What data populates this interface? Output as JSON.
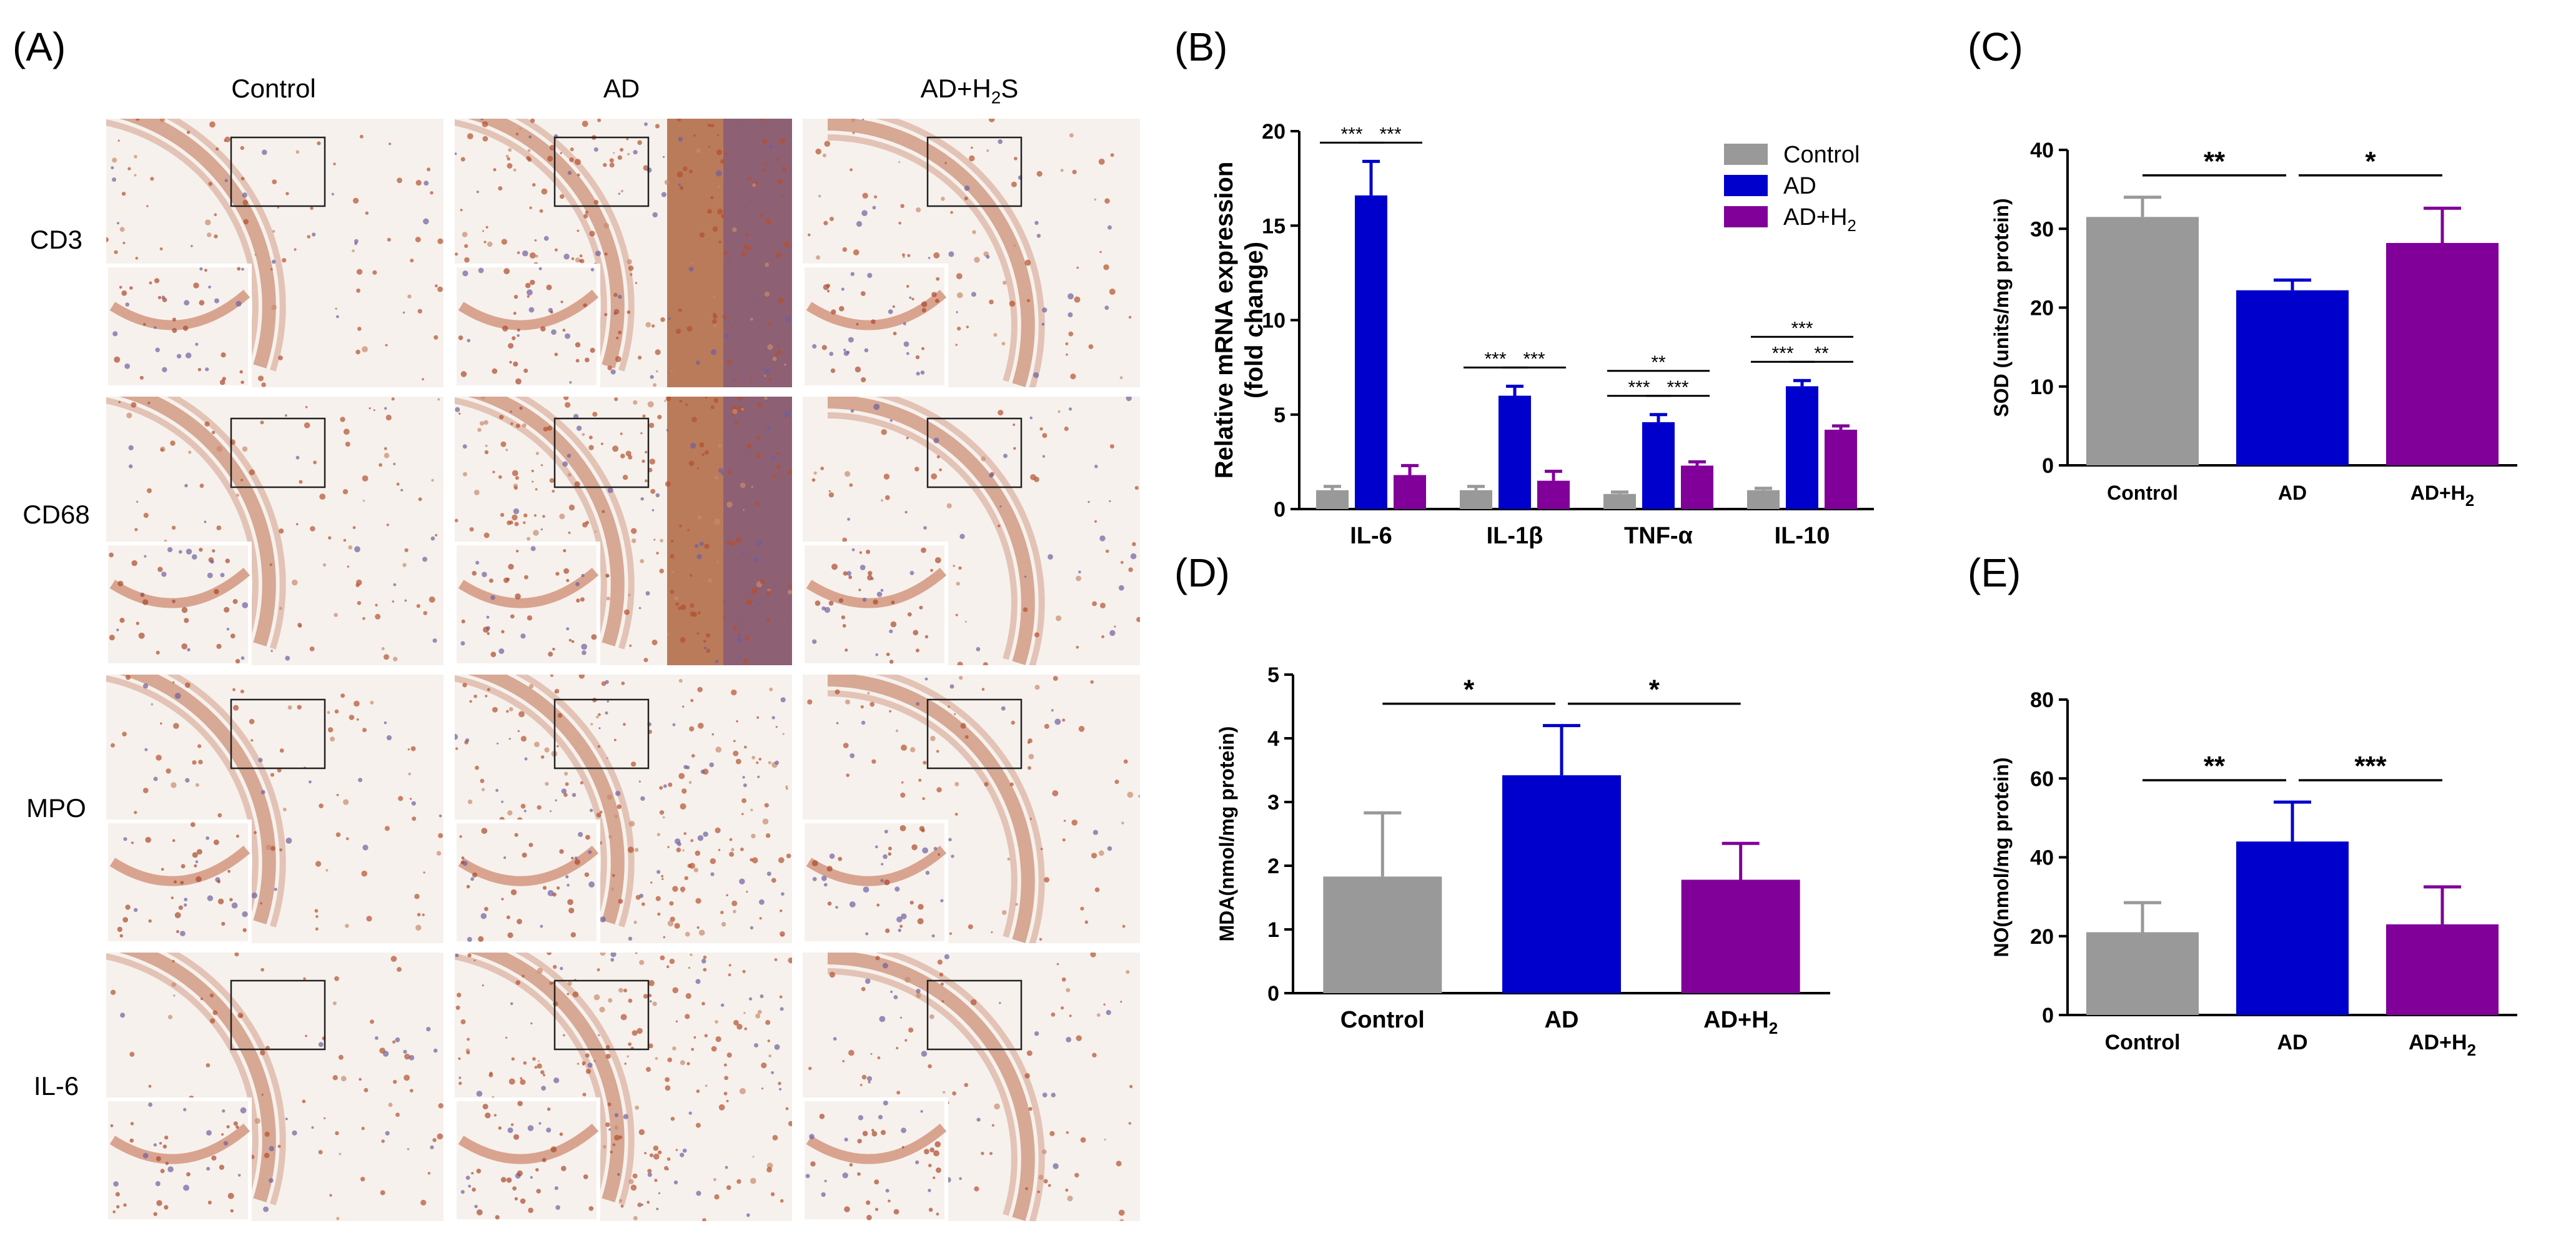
{
  "colors": {
    "control": "#999999",
    "ad": "#0000cc",
    "ad_h2s": "#800099"
  },
  "panels": {
    "a": "(A)",
    "b": "(B)",
    "c": "(C)",
    "d": "(D)",
    "e": "(E)"
  },
  "histology": {
    "columns": [
      "Control",
      "AD",
      "AD+H2S"
    ],
    "rows": [
      "CD3",
      "CD68",
      "MPO",
      "IL-6"
    ]
  },
  "chart_data": [
    {
      "id": "B",
      "type": "bar",
      "categories": [
        "IL-6",
        "IL-1β",
        "TNF-α",
        "IL-10"
      ],
      "series": [
        {
          "name": "Control",
          "values": [
            1.0,
            1.0,
            0.8,
            1.0
          ],
          "errors": [
            0.2,
            0.2,
            0.1,
            0.1
          ]
        },
        {
          "name": "AD",
          "values": [
            16.6,
            6.0,
            4.6,
            6.5
          ],
          "errors": [
            1.8,
            0.5,
            0.4,
            0.3
          ]
        },
        {
          "name": "AD+H2S",
          "values": [
            1.8,
            1.5,
            2.3,
            4.2
          ],
          "errors": [
            0.5,
            0.5,
            0.2,
            0.2
          ]
        }
      ],
      "ylabel": "Relative mRNA expression (fold change)",
      "ylim": [
        0,
        20
      ],
      "yticks": [
        0,
        5,
        10,
        15,
        20
      ],
      "legend": "top-right",
      "significance": [
        {
          "category": 0,
          "from": 0,
          "to": 1,
          "label": "***"
        },
        {
          "category": 0,
          "from": 1,
          "to": 2,
          "label": "***"
        },
        {
          "category": 1,
          "from": 0,
          "to": 1,
          "label": "***"
        },
        {
          "category": 1,
          "from": 1,
          "to": 2,
          "label": "***"
        },
        {
          "category": 2,
          "from": 0,
          "to": 2,
          "label": "**"
        },
        {
          "category": 2,
          "from": 0,
          "to": 1,
          "label": "***"
        },
        {
          "category": 2,
          "from": 1,
          "to": 2,
          "label": "***"
        },
        {
          "category": 3,
          "from": 0,
          "to": 2,
          "label": "***"
        },
        {
          "category": 3,
          "from": 0,
          "to": 1,
          "label": "***"
        },
        {
          "category": 3,
          "from": 1,
          "to": 2,
          "label": "**"
        }
      ]
    },
    {
      "id": "C",
      "type": "bar",
      "categories": [
        "Control",
        "AD",
        "AD+H2S"
      ],
      "values": [
        31.5,
        22.2,
        28.2
      ],
      "errors": [
        2.5,
        1.3,
        4.4
      ],
      "ylabel": "SOD (units/mg protein)",
      "ylim": [
        0,
        40
      ],
      "yticks": [
        0,
        10,
        20,
        30,
        40
      ],
      "significance": [
        {
          "from": 0,
          "to": 1,
          "label": "**"
        },
        {
          "from": 1,
          "to": 2,
          "label": "*"
        }
      ]
    },
    {
      "id": "D",
      "type": "bar",
      "categories": [
        "Control",
        "AD",
        "AD+H2S"
      ],
      "values": [
        1.83,
        3.42,
        1.78
      ],
      "errors": [
        1.0,
        0.78,
        0.57
      ],
      "ylabel": "MDA(nmol/mg protein)",
      "ylim": [
        0,
        5
      ],
      "yticks": [
        0,
        1,
        2,
        3,
        4,
        5
      ],
      "significance": [
        {
          "from": 0,
          "to": 1,
          "label": "*"
        },
        {
          "from": 1,
          "to": 2,
          "label": "*"
        }
      ]
    },
    {
      "id": "E",
      "type": "bar",
      "categories": [
        "Control",
        "AD",
        "AD+H2S"
      ],
      "values": [
        21,
        44,
        23
      ],
      "errors": [
        7.5,
        10,
        9.5
      ],
      "ylabel": "NO(nmol/mg protein)",
      "ylim": [
        0,
        80
      ],
      "yticks": [
        0,
        20,
        40,
        60,
        80
      ],
      "significance": [
        {
          "from": 0,
          "to": 1,
          "label": "**"
        },
        {
          "from": 1,
          "to": 2,
          "label": "***"
        }
      ]
    }
  ]
}
